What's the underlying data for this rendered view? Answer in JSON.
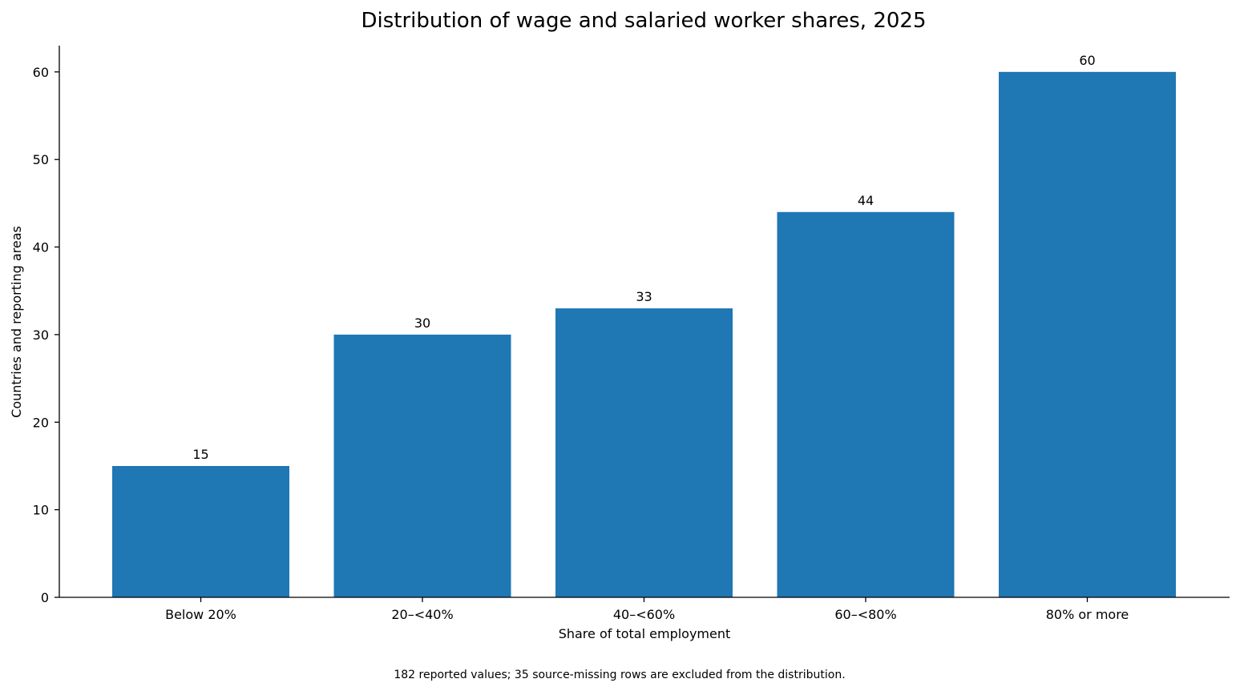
{
  "chart_data": {
    "type": "bar",
    "title": "Distribution of wage and salaried worker shares, 2025",
    "xlabel": "Share of total employment",
    "ylabel": "Countries and reporting areas",
    "categories": [
      "Below 20%",
      "20–<40%",
      "40–<60%",
      "60–<80%",
      "80% or more"
    ],
    "values": [
      15,
      30,
      33,
      44,
      60
    ],
    "data_labels": [
      "15",
      "30",
      "33",
      "44",
      "60"
    ],
    "ylim": [
      0,
      63
    ],
    "yticks": [
      0,
      10,
      20,
      30,
      40,
      50,
      60
    ],
    "grid": false,
    "legend": "none",
    "bar_color": "#1f77b4",
    "footnote": "182 reported values; 35 source-missing rows are excluded from the distribution."
  }
}
